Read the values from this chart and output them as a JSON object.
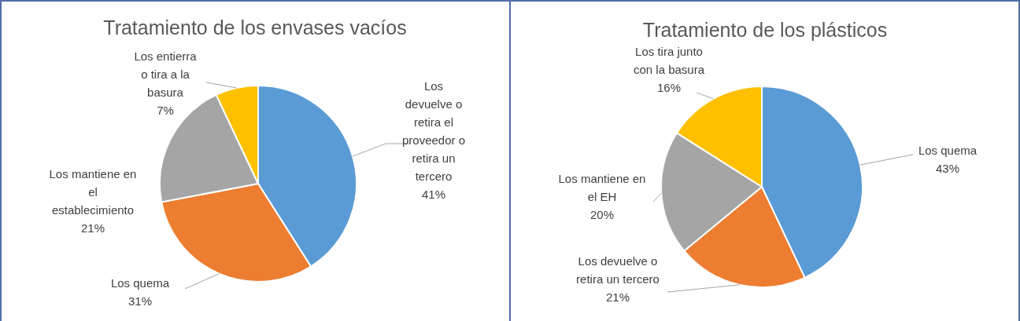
{
  "chart_data": [
    {
      "type": "pie",
      "title": "Tratamiento de los envases vacíos",
      "categories": [
        "Los devuelve o retira el proveedor o retira un tercero",
        "Los quema",
        "Los mantiene en el establecimiento",
        "Los entierra o tira a la basura"
      ],
      "values": [
        41,
        31,
        21,
        7
      ],
      "value_labels": [
        "41%",
        "31%",
        "21%",
        "7%"
      ],
      "colors": [
        "#5b9bd5",
        "#ed7d31",
        "#a5a5a5",
        "#ffc000"
      ]
    },
    {
      "type": "pie",
      "title": "Tratamiento de los plásticos",
      "categories": [
        "Los quema",
        "Los devuelve o retira un tercero",
        "Los mantiene en el EH",
        "Los tira junto con la basura"
      ],
      "values": [
        43,
        21,
        20,
        16
      ],
      "value_labels": [
        "43%",
        "21%",
        "20%",
        "16%"
      ],
      "colors": [
        "#5b9bd5",
        "#ed7d31",
        "#a5a5a5",
        "#ffc000"
      ]
    }
  ]
}
